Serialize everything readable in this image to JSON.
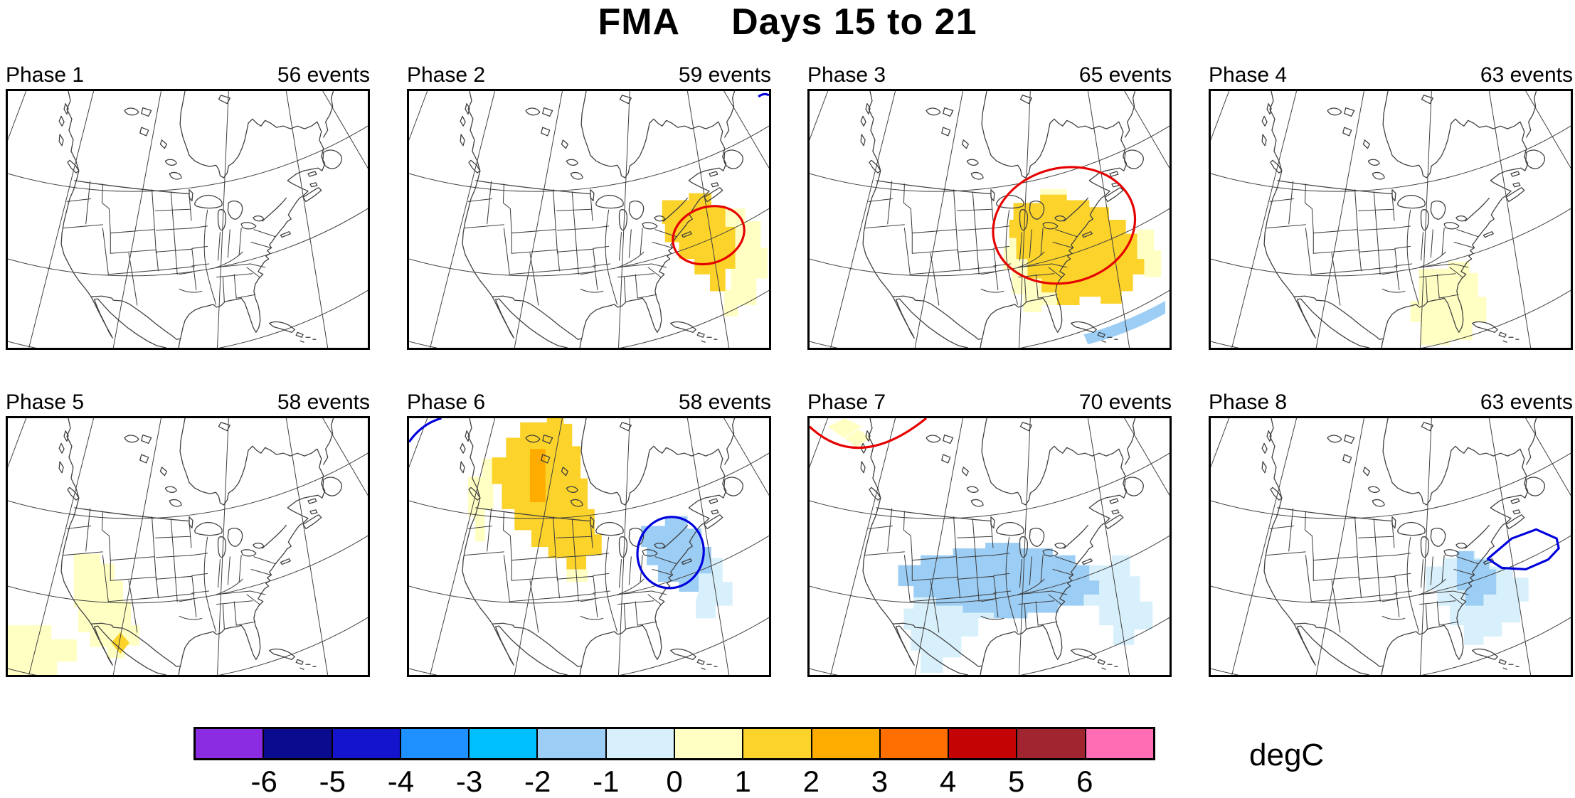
{
  "title": {
    "segment1": "FMA",
    "segment2": "Days 15 to 21"
  },
  "units_label": "degC",
  "panels": [
    {
      "label": "Phase 1",
      "events": "56 events"
    },
    {
      "label": "Phase 2",
      "events": "59 events"
    },
    {
      "label": "Phase 3",
      "events": "65 events"
    },
    {
      "label": "Phase 4",
      "events": "63 events"
    },
    {
      "label": "Phase 5",
      "events": "58 events"
    },
    {
      "label": "Phase 6",
      "events": "58 events"
    },
    {
      "label": "Phase 7",
      "events": "70 events"
    },
    {
      "label": "Phase 8",
      "events": "63 events"
    }
  ],
  "palette": {
    "warm_0_1": "#FFFFC4",
    "warm_1_2": "#FBD32B",
    "warm_2_3": "#FFAC00",
    "cool_0_1": "#D8F0FB",
    "cool_1_2": "#9CCDF4",
    "contour_pos": "#E60000",
    "contour_neg": "#0000DD"
  },
  "colorbar": {
    "tick_labels": [
      "-6",
      "-5",
      "-4",
      "-3",
      "-2",
      "-1",
      "0",
      "1",
      "2",
      "3",
      "4",
      "5",
      "6"
    ],
    "cell_colors": [
      "#8B2BE2",
      "#0B0B8F",
      "#1414CC",
      "#1E90FF",
      "#00BFFF",
      "#9CCDF4",
      "#D8F0FB",
      "#FFFFC4",
      "#FBD32B",
      "#FFAC00",
      "#FF6E00",
      "#C40404",
      "#A02530",
      "#FF6EB4"
    ]
  },
  "chart_data": {
    "type": "heatmap",
    "title": "FMA Days 15 to 21",
    "units": "degC",
    "layout": "8 composite temperature-anomaly maps of North America (2 rows x 4 columns), one per MJO phase, shared colorbar at bottom",
    "colorbar": {
      "levels": [
        -6,
        -5,
        -4,
        -3,
        -2,
        -1,
        0,
        1,
        2,
        3,
        4,
        5,
        6
      ],
      "colors": [
        "#8B2BE2",
        "#0B0B8F",
        "#1414CC",
        "#1E90FF",
        "#00BFFF",
        "#9CCDF4",
        "#D8F0FB",
        "#FFFFC4",
        "#FBD32B",
        "#FFAC00",
        "#FF6E00",
        "#C40404",
        "#A02530",
        "#FF6EB4"
      ]
    },
    "panels": [
      {
        "phase": "Phase 1",
        "events": 56,
        "anomalies": []
      },
      {
        "phase": "Phase 2",
        "events": 59,
        "anomalies": [
          {
            "region": "New England / northeastern US",
            "sign": "warm",
            "magnitude_degC": "1 to 2",
            "significant": true,
            "contour": "red"
          },
          {
            "region": "western Atlantic southeast of patch",
            "sign": "warm",
            "magnitude_degC": "0 to 1"
          }
        ]
      },
      {
        "phase": "Phase 3",
        "events": 65,
        "anomalies": [
          {
            "region": "Great Lakes / Midwest / Northeast US",
            "sign": "warm",
            "magnitude_degC": "1 to 2",
            "significant": true,
            "contour": "red"
          },
          {
            "region": "fringe around warm core",
            "sign": "warm",
            "magnitude_degC": "0 to 1"
          },
          {
            "region": "subtropical western Atlantic streak",
            "sign": "cool",
            "magnitude_degC": "-1 to -2"
          }
        ]
      },
      {
        "phase": "Phase 4",
        "events": 63,
        "anomalies": [
          {
            "region": "southeastern US / Gulf states / Florida",
            "sign": "warm",
            "magnitude_degC": "0 to 1"
          }
        ]
      },
      {
        "phase": "Phase 5",
        "events": 58,
        "anomalies": [
          {
            "region": "California / Great Basin / Baja and offshore Pacific",
            "sign": "warm",
            "magnitude_degC": "0 to 1"
          },
          {
            "region": "single cell near Baja coast",
            "sign": "warm",
            "magnitude_degC": "1 to 2"
          }
        ]
      },
      {
        "phase": "Phase 6",
        "events": 58,
        "anomalies": [
          {
            "region": "northwestern Canada south into Montana",
            "sign": "warm",
            "magnitude_degC": "1 to 2"
          },
          {
            "region": "core over Mackenzie region",
            "sign": "warm",
            "magnitude_degC": "2 to 3"
          },
          {
            "region": "Great Lakes / Northeast US",
            "sign": "cool",
            "magnitude_degC": "-1 to -2",
            "significant": true,
            "contour": "blue"
          },
          {
            "region": "top-left corner fragment",
            "sign": "cool",
            "contour": "blue"
          }
        ]
      },
      {
        "phase": "Phase 7",
        "events": 70,
        "anomalies": [
          {
            "region": "central and eastern US",
            "sign": "cool",
            "magnitude_degC": "-1 to -2"
          },
          {
            "region": "Texas / northern Mexico and western Atlantic fringe",
            "sign": "cool",
            "magnitude_degC": "0 to -1"
          },
          {
            "region": "Alaska corner (top-left)",
            "sign": "warm",
            "magnitude_degC": "0 to 1",
            "significant": true,
            "contour": "red"
          }
        ]
      },
      {
        "phase": "Phase 8",
        "events": 63,
        "anomalies": [
          {
            "region": "mid-Atlantic coast and adjacent western Atlantic",
            "sign": "cool",
            "magnitude_degC": "-1 to -2"
          },
          {
            "region": "offshore New England",
            "sign": "cool",
            "significant": true,
            "contour": "blue"
          }
        ]
      }
    ]
  }
}
